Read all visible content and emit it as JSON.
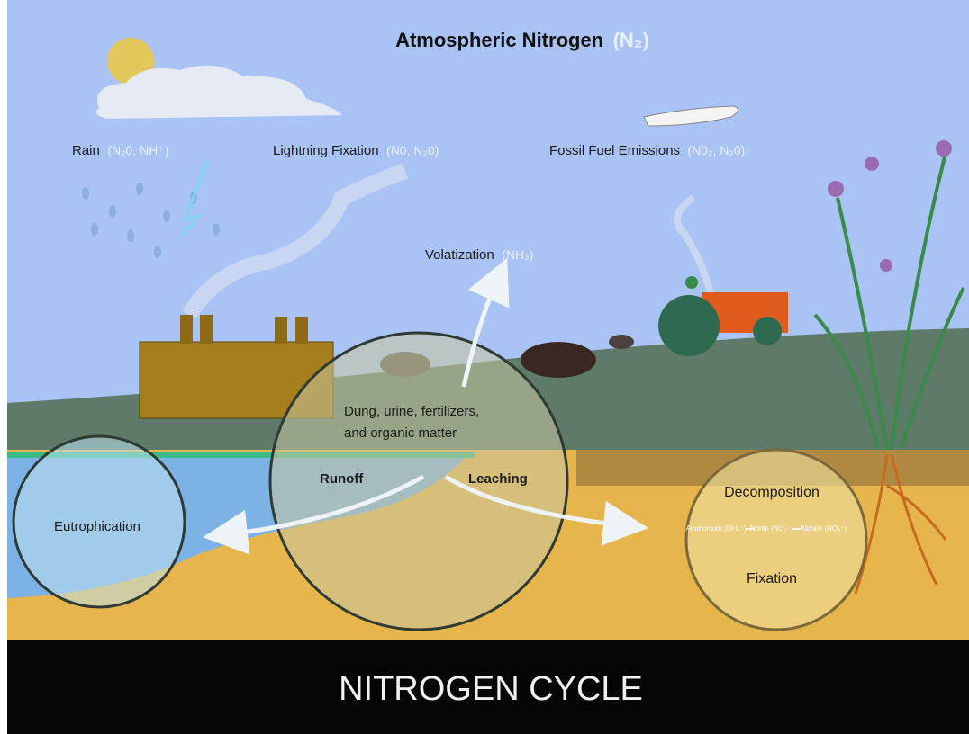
{
  "title": {
    "text": "Atmospheric Nitrogen",
    "formula": "(N₂)"
  },
  "sources": [
    {
      "label": "Rain",
      "formula": "(N₂0, NH⁺)"
    },
    {
      "label": "Lightning Fixation",
      "formula": "(N0, N₂0)"
    },
    {
      "label": "Fossil Fuel Emissions",
      "formula": "(N0₂, N₂0)"
    }
  ],
  "volatization": {
    "label": "Volatization",
    "formula": "(NH₃)"
  },
  "center": {
    "lines": [
      "Dung, urine, fertilizers,",
      "and organic matter"
    ],
    "runoff": "Runoff",
    "leaching": "Leaching"
  },
  "left": "Eutrophication",
  "right": {
    "top": "Decomposition",
    "chain": [
      "Ammonium (NH₄⁺)",
      "Nitrite (NO₂⁻)",
      "Nitrate (NO₃⁻)"
    ],
    "bottom": "Fixation"
  },
  "footer": "NITROGEN CYCLE"
}
